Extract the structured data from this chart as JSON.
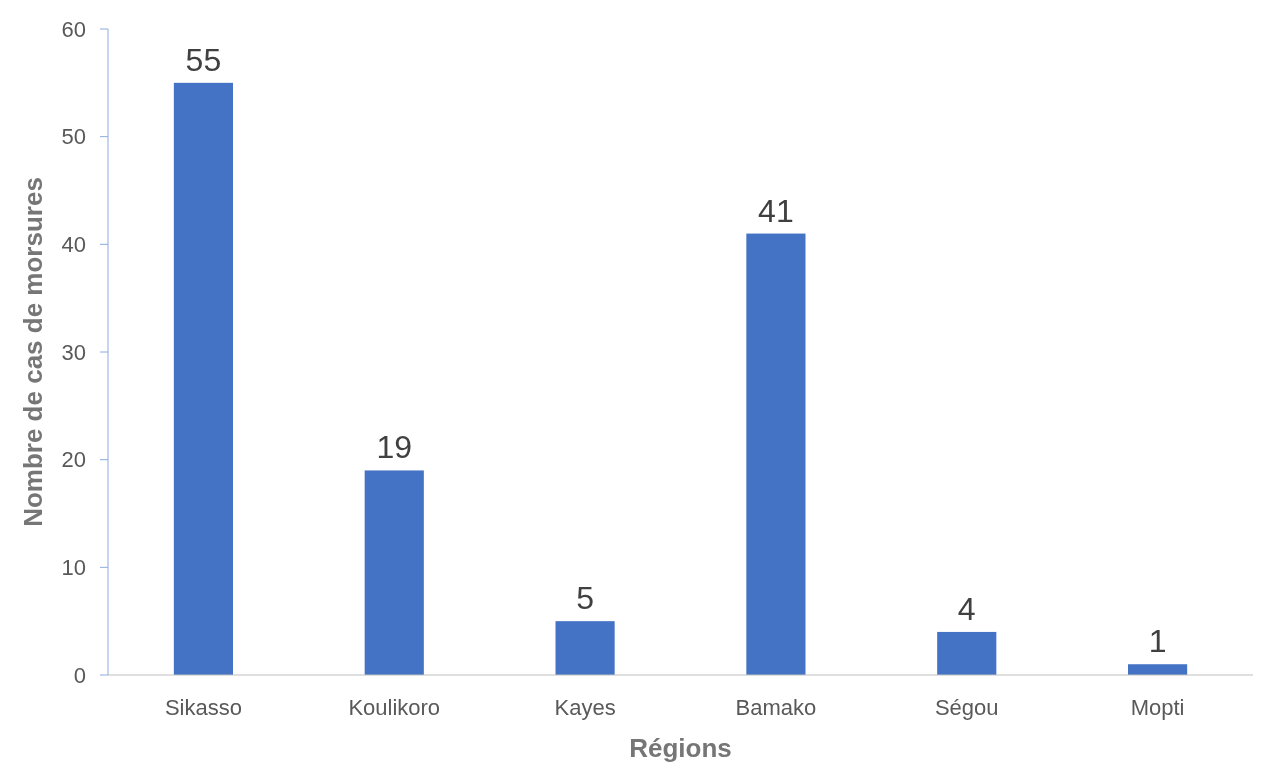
{
  "chart_data": {
    "type": "bar",
    "xlabel": "Régions",
    "ylabel": "Nombre de cas de morsures",
    "categories": [
      "Sikasso",
      "Koulikoro",
      "Kayes",
      "Bamako",
      "Ségou",
      "Mopti"
    ],
    "values": [
      55,
      19,
      5,
      41,
      4,
      1
    ],
    "color": "#4472c4",
    "ylim": [
      0,
      60
    ],
    "yticks": [
      0,
      10,
      20,
      30,
      40,
      50,
      60
    ],
    "grid": false,
    "data_labels": true
  }
}
